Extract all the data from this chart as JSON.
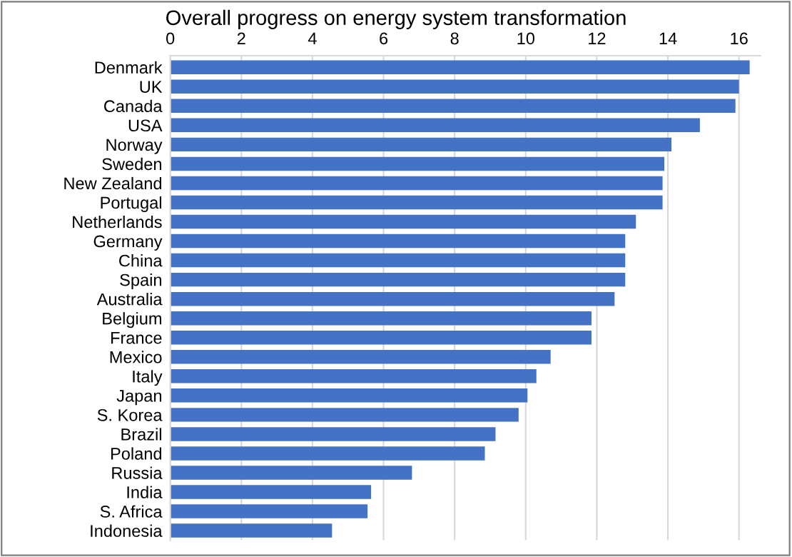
{
  "chart_data": {
    "type": "bar",
    "orientation": "horizontal",
    "title": "Overall progress on energy system transformation",
    "categories": [
      "Denmark",
      "UK",
      "Canada",
      "USA",
      "Norway",
      "Sweden",
      "New Zealand",
      "Portugal",
      "Netherlands",
      "Germany",
      "China",
      "Spain",
      "Australia",
      "Belgium",
      "France",
      "Mexico",
      "Italy",
      "Japan",
      "S. Korea",
      "Brazil",
      "Poland",
      "Russia",
      "India",
      "S. Africa",
      "Indonesia"
    ],
    "values": [
      16.3,
      16.0,
      15.9,
      14.9,
      14.1,
      13.9,
      13.85,
      13.85,
      13.1,
      12.8,
      12.8,
      12.8,
      12.5,
      11.85,
      11.85,
      10.7,
      10.3,
      10.05,
      9.8,
      9.15,
      8.85,
      6.8,
      5.65,
      5.55,
      4.55
    ],
    "color": "#4472c4",
    "xlim": [
      0,
      16.6
    ],
    "xticks": [
      0,
      2,
      4,
      6,
      8,
      10,
      12,
      14,
      16
    ],
    "grid": "x"
  }
}
